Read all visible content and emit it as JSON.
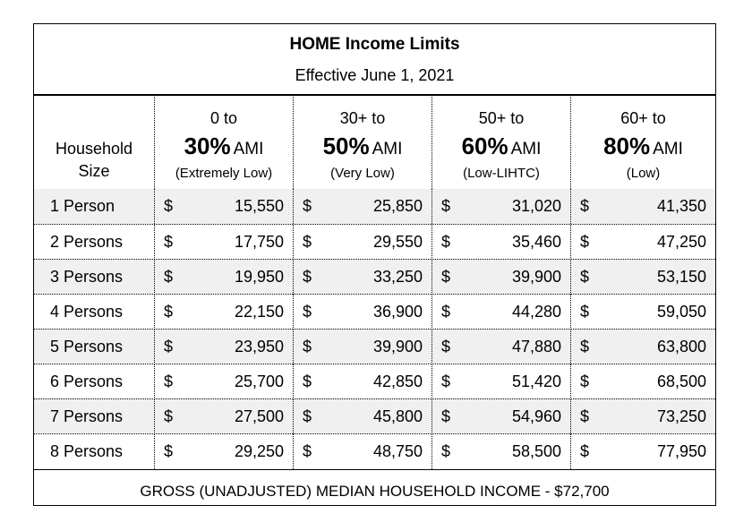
{
  "title": "HOME Income Limits",
  "subtitle": "Effective June 1, 2021",
  "header": {
    "size_label_line1": "Household",
    "size_label_line2": "Size",
    "columns": [
      {
        "range": "0 to",
        "percent": "30%",
        "ami": "AMI",
        "desc": "(Extremely Low)"
      },
      {
        "range": "30+ to",
        "percent": "50%",
        "ami": "AMI",
        "desc": "(Very Low)"
      },
      {
        "range": "50+ to",
        "percent": "60%",
        "ami": "AMI",
        "desc": "(Low-LIHTC)"
      },
      {
        "range": "60+ to",
        "percent": "80%",
        "ami": "AMI",
        "desc": "(Low)"
      }
    ]
  },
  "currency_symbol": "$",
  "rows": [
    {
      "size": "1 Person",
      "values": [
        "15,550",
        "25,850",
        "31,020",
        "41,350"
      ]
    },
    {
      "size": "2 Persons",
      "values": [
        "17,750",
        "29,550",
        "35,460",
        "47,250"
      ]
    },
    {
      "size": "3 Persons",
      "values": [
        "19,950",
        "33,250",
        "39,900",
        "53,150"
      ]
    },
    {
      "size": "4 Persons",
      "values": [
        "22,150",
        "36,900",
        "44,280",
        "59,050"
      ]
    },
    {
      "size": "5 Persons",
      "values": [
        "23,950",
        "39,900",
        "47,880",
        "63,800"
      ]
    },
    {
      "size": "6 Persons",
      "values": [
        "25,700",
        "42,850",
        "51,420",
        "68,500"
      ]
    },
    {
      "size": "7 Persons",
      "values": [
        "27,500",
        "45,800",
        "54,960",
        "73,250"
      ]
    },
    {
      "size": "8 Persons",
      "values": [
        "29,250",
        "48,750",
        "58,500",
        "77,950"
      ]
    }
  ],
  "footer": "GROSS (UNADJUSTED) MEDIAN HOUSEHOLD INCOME - $72,700",
  "colors": {
    "shaded_row": "#f0f0f0",
    "border": "#000000"
  }
}
